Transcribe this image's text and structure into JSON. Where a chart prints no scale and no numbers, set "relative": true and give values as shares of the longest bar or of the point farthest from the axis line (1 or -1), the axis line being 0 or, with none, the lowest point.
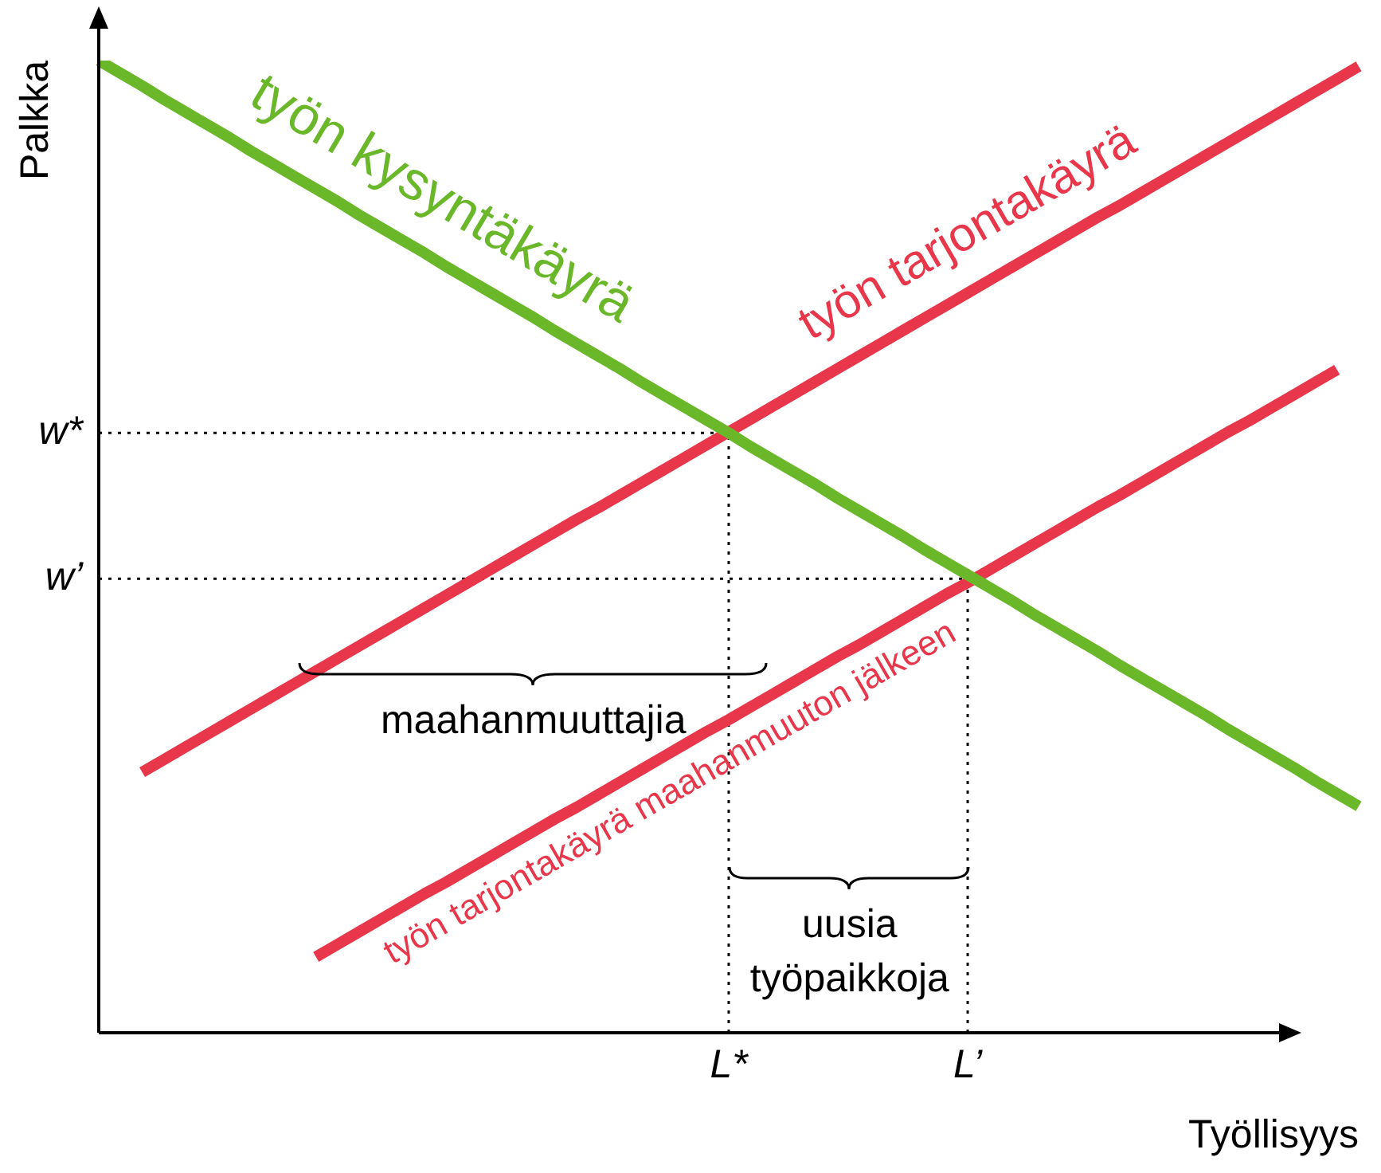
{
  "chart_data": {
    "type": "line",
    "relative": true,
    "xlabel": "Työllisyys",
    "ylabel": "Palkka",
    "categories": [
      null,
      null,
      null,
      null,
      null,
      null,
      null,
      null,
      null,
      null,
      null,
      null,
      null,
      null,
      null,
      null,
      null,
      null,
      null,
      null,
      null,
      null,
      null,
      null,
      null,
      null,
      null,
      null,
      null,
      "L*",
      null,
      null,
      null,
      null,
      null,
      null,
      null,
      null,
      null,
      null,
      "L’",
      null,
      null,
      null,
      null,
      null,
      null,
      null,
      null,
      null,
      null,
      null,
      null,
      null,
      null,
      null,
      null,
      null,
      null
    ],
    "series": [
      {
        "name": "työn kysyntäkäyrä",
        "color": "#6ab82a",
        "values": [
          1.0,
          0.987,
          0.974,
          0.96,
          0.947,
          0.934,
          0.921,
          0.907,
          0.894,
          0.881,
          0.868,
          0.855,
          0.841,
          0.828,
          0.815,
          0.802,
          0.788,
          0.775,
          0.762,
          0.749,
          0.736,
          0.722,
          0.709,
          0.696,
          0.683,
          0.669,
          0.656,
          0.643,
          0.63,
          0.617,
          0.603,
          0.59,
          0.577,
          0.564,
          0.55,
          0.537,
          0.524,
          0.511,
          0.497,
          0.484,
          0.471,
          0.458,
          0.445,
          0.431,
          0.418,
          0.405,
          0.392,
          0.378,
          0.365,
          0.352,
          0.339,
          0.326,
          0.312,
          0.299,
          0.286,
          0.273,
          0.259,
          0.246,
          0.233
        ]
      },
      {
        "name": "työn tarjontakäyrä",
        "color": "#e8364a",
        "values": [
          null,
          null,
          0.268,
          0.281,
          0.294,
          0.307,
          0.32,
          0.333,
          0.346,
          0.359,
          0.372,
          0.385,
          0.398,
          0.411,
          0.424,
          0.437,
          0.45,
          0.463,
          0.476,
          0.489,
          0.502,
          0.515,
          0.528,
          0.54,
          0.553,
          0.566,
          0.579,
          0.592,
          0.605,
          0.618,
          0.631,
          0.644,
          0.657,
          0.67,
          0.683,
          0.696,
          0.709,
          0.722,
          0.735,
          0.748,
          0.761,
          0.774,
          0.787,
          0.8,
          0.813,
          0.826,
          0.839,
          0.851,
          0.864,
          0.877,
          0.89,
          0.903,
          0.916,
          0.929,
          0.942,
          0.955,
          0.968,
          0.981,
          0.994
        ]
      },
      {
        "name": "työn tarjontakäyrä maahanmuuton jälkeen",
        "color": "#e8364a",
        "values": [
          null,
          null,
          null,
          null,
          null,
          null,
          null,
          null,
          null,
          null,
          0.078,
          0.091,
          0.104,
          0.117,
          0.13,
          0.143,
          0.155,
          0.168,
          0.181,
          0.194,
          0.207,
          0.22,
          0.232,
          0.245,
          0.258,
          0.271,
          0.284,
          0.297,
          0.31,
          0.322,
          0.335,
          0.348,
          0.361,
          0.374,
          0.387,
          0.399,
          0.412,
          0.425,
          0.438,
          0.451,
          0.463,
          0.476,
          0.489,
          0.502,
          0.515,
          0.528,
          0.541,
          0.553,
          0.566,
          0.579,
          0.592,
          0.605,
          0.618,
          0.63,
          0.643,
          0.656,
          0.669,
          0.682,
          null
        ]
      }
    ],
    "ref_lines": [
      {
        "axis": "y",
        "value": 0.617,
        "label": "w*",
        "line_style": "dotted",
        "color": "#000000"
      },
      {
        "axis": "y",
        "value": 0.467,
        "label": "w’",
        "line_style": "dotted",
        "color": "#000000"
      },
      {
        "axis": "x",
        "value": "L*",
        "line_style": "dotted",
        "color": "#000000"
      },
      {
        "axis": "x",
        "value": "L’",
        "line_style": "dotted",
        "color": "#000000"
      }
    ],
    "annotations": [
      "maahanmuuttajia",
      "uusia työpaikkoja"
    ],
    "legend": false,
    "marker": "none",
    "line_style": "solid"
  }
}
